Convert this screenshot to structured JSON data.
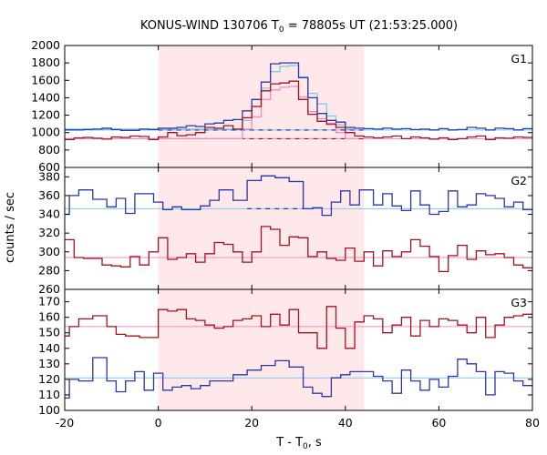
{
  "chart_data": {
    "type": "line",
    "title_main": "KONUS-WIND 130706 T",
    "title_sub": "0",
    "title_rest": " = 78805s UT (21:53:25.000)",
    "xlabel_main": "T - T",
    "xlabel_sub": "0",
    "xlabel_rest": ", s",
    "ylabel": "counts / sec",
    "xlim": [
      -20,
      80
    ],
    "xticks": [
      -20,
      0,
      20,
      40,
      60,
      80
    ],
    "shaded_interval": [
      0,
      44
    ],
    "colors": {
      "shade": "#ffe8ea",
      "dark_blue": "#2a37a8",
      "dark_red": "#a0141c",
      "light_blue": "#7ec8ec",
      "pink": "#f08cc4",
      "frame": "#000000"
    },
    "panels": [
      {
        "label": "G1",
        "ylim": [
          600,
          2000
        ],
        "yticks": [
          600,
          800,
          1000,
          1200,
          1400,
          1600,
          1800,
          2000
        ],
        "series": [
          {
            "color_key": "light_blue",
            "x": [
              -20,
              18,
              20,
              22,
              24,
              26,
              28,
              30,
              32,
              34,
              36,
              38,
              40
            ],
            "y": [
              1040,
              1140,
              1300,
              1510,
              1700,
              1760,
              1770,
              1640,
              1450,
              1330,
              1190,
              1090,
              1040
            ]
          },
          {
            "color_key": "pink",
            "x": [
              -20,
              18,
              20,
              22,
              24,
              26,
              28,
              30,
              32,
              34,
              36,
              38,
              40
            ],
            "y": [
              930,
              1040,
              1180,
              1380,
              1490,
              1520,
              1530,
              1410,
              1240,
              1160,
              1090,
              1000,
              930
            ]
          },
          {
            "color_key": "dark_blue",
            "x": [
              -20,
              -18,
              -16,
              -14,
              -12,
              -10,
              -8,
              -6,
              -4,
              -2,
              0,
              2,
              4,
              6,
              8,
              10,
              12,
              14,
              16,
              18,
              20,
              22,
              24,
              26,
              28,
              30,
              32,
              34,
              36,
              38,
              40,
              42,
              44,
              46,
              48,
              50,
              52,
              54,
              56,
              58,
              60,
              62,
              64,
              66,
              68,
              70,
              72,
              74,
              76,
              78
            ],
            "y": [
              1030,
              1030,
              1035,
              1040,
              1050,
              1035,
              1025,
              1025,
              1040,
              1035,
              1050,
              1050,
              1060,
              1080,
              1070,
              1100,
              1110,
              1140,
              1150,
              1250,
              1380,
              1580,
              1790,
              1800,
              1800,
              1630,
              1400,
              1220,
              1140,
              1120,
              1060,
              1050,
              1045,
              1040,
              1050,
              1040,
              1045,
              1035,
              1040,
              1030,
              1045,
              1030,
              1035,
              1060,
              1050,
              1030,
              1050,
              1045,
              1030,
              1045
            ]
          },
          {
            "color_key": "dark_red",
            "x": [
              -20,
              -18,
              -16,
              -14,
              -12,
              -10,
              -8,
              -6,
              -4,
              -2,
              0,
              2,
              4,
              6,
              8,
              10,
              12,
              14,
              16,
              18,
              20,
              22,
              24,
              26,
              28,
              30,
              32,
              34,
              36,
              38,
              40,
              42,
              44,
              46,
              48,
              50,
              52,
              54,
              56,
              58,
              60,
              62,
              64,
              66,
              68,
              70,
              72,
              74,
              76,
              78
            ],
            "y": [
              920,
              940,
              945,
              935,
              925,
              950,
              945,
              960,
              955,
              920,
              950,
              1000,
              965,
              975,
              1000,
              1060,
              1050,
              1080,
              1040,
              1170,
              1300,
              1480,
              1560,
              1570,
              1590,
              1380,
              1210,
              1130,
              1100,
              1060,
              1000,
              960,
              950,
              940,
              950,
              960,
              930,
              950,
              940,
              925,
              940,
              920,
              930,
              950,
              960,
              920,
              940,
              935,
              950,
              945
            ]
          }
        ],
        "background_levels": [
          {
            "color_key": "light_blue",
            "value": 1030,
            "dashed_segment_key": "dark_blue",
            "dashed_from": 0,
            "dashed_to": 44
          },
          {
            "color_key": "pink",
            "value": 930,
            "dashed_segment_key": "dark_red",
            "dashed_from": 0,
            "dashed_to": 44
          }
        ]
      },
      {
        "label": "G2",
        "ylim": [
          260,
          390
        ],
        "yticks": [
          260,
          280,
          300,
          320,
          340,
          360,
          380
        ],
        "series": [
          {
            "color_key": "light_blue",
            "x": [
              19,
              22,
              25,
              28,
              31
            ],
            "y": [
              376,
              381,
              379,
              375,
              346
            ]
          },
          {
            "color_key": "dark_blue",
            "x": [
              -20,
              -19,
              -17,
              -14,
              -11,
              -9,
              -7,
              -5,
              -3,
              -1,
              1,
              3,
              5,
              7,
              9,
              11,
              13,
              16,
              19,
              22,
              25,
              28,
              31,
              33,
              35,
              37,
              39,
              41,
              43,
              46,
              48,
              50,
              52,
              54,
              56,
              58,
              60,
              62,
              64,
              66,
              68,
              70,
              72,
              74,
              76,
              78
            ],
            "y": [
              340,
              360,
              366,
              356,
              348,
              357,
              341,
              362,
              362,
              353,
              345,
              348,
              345,
              345,
              349,
              355,
              366,
              355,
              376,
              381,
              379,
              375,
              346,
              347,
              339,
              353,
              365,
              350,
              366,
              350,
              362,
              349,
              344,
              365,
              350,
              340,
              343,
              365,
              348,
              350,
              362,
              360,
              357,
              348,
              353,
              345
            ]
          },
          {
            "color_key": "dark_red",
            "x": [
              -20,
              -18,
              -16,
              -14,
              -12,
              -10,
              -8,
              -6,
              -4,
              -2,
              0,
              2,
              4,
              6,
              8,
              10,
              12,
              14,
              16,
              18,
              20,
              22,
              24,
              26,
              28,
              30,
              32,
              34,
              36,
              38,
              40,
              42,
              44,
              46,
              48,
              50,
              52,
              54,
              56,
              58,
              60,
              62,
              64,
              66,
              68,
              70,
              72,
              74,
              76,
              78
            ],
            "y": [
              313,
              294,
              293,
              293,
              286,
              285,
              284,
              295,
              286,
              300,
              315,
              292,
              294,
              298,
              289,
              298,
              310,
              308,
              300,
              289,
              300,
              327,
              324,
              307,
              316,
              315,
              295,
              300,
              293,
              291,
              304,
              290,
              300,
              285,
              301,
              295,
              300,
              313,
              306,
              295,
              279,
              296,
              307,
              292,
              301,
              297,
              298,
              294,
              286,
              283
            ]
          }
        ],
        "background_levels": [
          {
            "color_key": "light_blue",
            "value": 346,
            "dashed_segment_key": "dark_blue",
            "dashed_from": 19,
            "dashed_to": 31
          },
          {
            "color_key": "pink",
            "value": 294
          }
        ]
      },
      {
        "label": "G3",
        "ylim": [
          100,
          178
        ],
        "yticks": [
          100,
          110,
          120,
          130,
          140,
          150,
          160,
          170
        ],
        "series": [
          {
            "color_key": "dark_red",
            "x": [
              -20,
              -19,
              -17,
              -14,
              -11,
              -9,
              -7,
              -4,
              -2,
              0,
              2,
              4,
              6,
              8,
              10,
              12,
              14,
              16,
              18,
              20,
              22,
              24,
              26,
              28,
              30,
              32,
              34,
              36,
              38,
              40,
              42,
              44,
              46,
              48,
              50,
              52,
              54,
              56,
              58,
              60,
              62,
              64,
              66,
              68,
              70,
              72,
              74,
              76,
              78,
              80
            ],
            "y": [
              148,
              154,
              159,
              161,
              154,
              149,
              148,
              147,
              147,
              165,
              164,
              165,
              159,
              158,
              155,
              153,
              154,
              158,
              159,
              161,
              154,
              162,
              155,
              165,
              150,
              150,
              140,
              167,
              153,
              140,
              157,
              161,
              159,
              150,
              155,
              160,
              148,
              158,
              154,
              159,
              158,
              155,
              150,
              160,
              147,
              155,
              160,
              161,
              162,
              162
            ]
          },
          {
            "color_key": "dark_blue",
            "x": [
              -20,
              -19,
              -17,
              -14,
              -11,
              -9,
              -7,
              -5,
              -3,
              -1,
              1,
              3,
              5,
              7,
              9,
              11,
              13,
              16,
              19,
              22,
              25,
              28,
              31,
              33,
              35,
              37,
              39,
              41,
              43,
              46,
              48,
              50,
              52,
              54,
              56,
              58,
              60,
              62,
              64,
              66,
              68,
              70,
              72,
              74,
              76,
              78,
              80
            ],
            "y": [
              108,
              120,
              119,
              134,
              119,
              112,
              119,
              125,
              113,
              124,
              113,
              115,
              116,
              114,
              116,
              119,
              119,
              123,
              126,
              129,
              132,
              128,
              115,
              111,
              109,
              121,
              123,
              125,
              125,
              122,
              119,
              111,
              126,
              119,
              113,
              120,
              115,
              122,
              133,
              130,
              125,
              110,
              125,
              124,
              119,
              116,
              116
            ]
          }
        ],
        "background_levels": [
          {
            "color_key": "pink",
            "value": 154
          },
          {
            "color_key": "light_blue",
            "value": 121
          }
        ]
      }
    ]
  }
}
